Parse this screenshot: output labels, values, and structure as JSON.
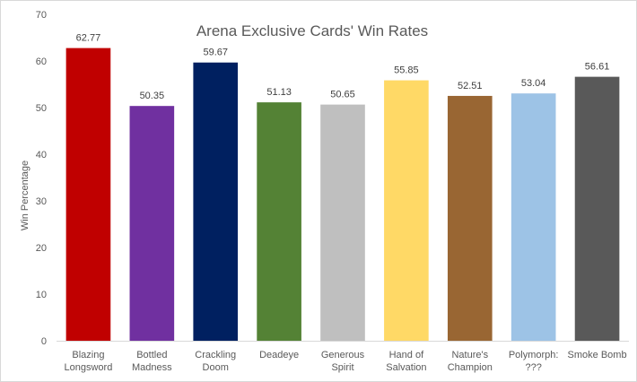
{
  "chart_data": {
    "type": "bar",
    "title": "Arena Exclusive Cards' Win Rates",
    "xlabel": "",
    "ylabel": "Win Percentage",
    "ylim": [
      0,
      70
    ],
    "yticks": [
      0,
      10,
      20,
      30,
      40,
      50,
      60,
      70
    ],
    "grid": false,
    "categories": [
      [
        "Blazing",
        "Longsword"
      ],
      [
        "Bottled",
        "Madness"
      ],
      [
        "Crackling",
        "Doom"
      ],
      [
        "Deadeye"
      ],
      [
        "Generous",
        "Spirit"
      ],
      [
        "Hand of",
        "Salvation"
      ],
      [
        "Nature's",
        "Champion"
      ],
      [
        "Polymorph:",
        "???"
      ],
      [
        "Smoke Bomb"
      ]
    ],
    "values": [
      62.77,
      50.35,
      59.67,
      51.13,
      50.65,
      55.85,
      52.51,
      53.04,
      56.61
    ],
    "value_labels": [
      "62.77",
      "50.35",
      "59.67",
      "51.13",
      "50.65",
      "55.85",
      "52.51",
      "53.04",
      "56.61"
    ],
    "colors": [
      "#c00000",
      "#7030a0",
      "#002060",
      "#548235",
      "#bfbfbf",
      "#ffd966",
      "#996633",
      "#9dc3e6",
      "#595959"
    ]
  }
}
